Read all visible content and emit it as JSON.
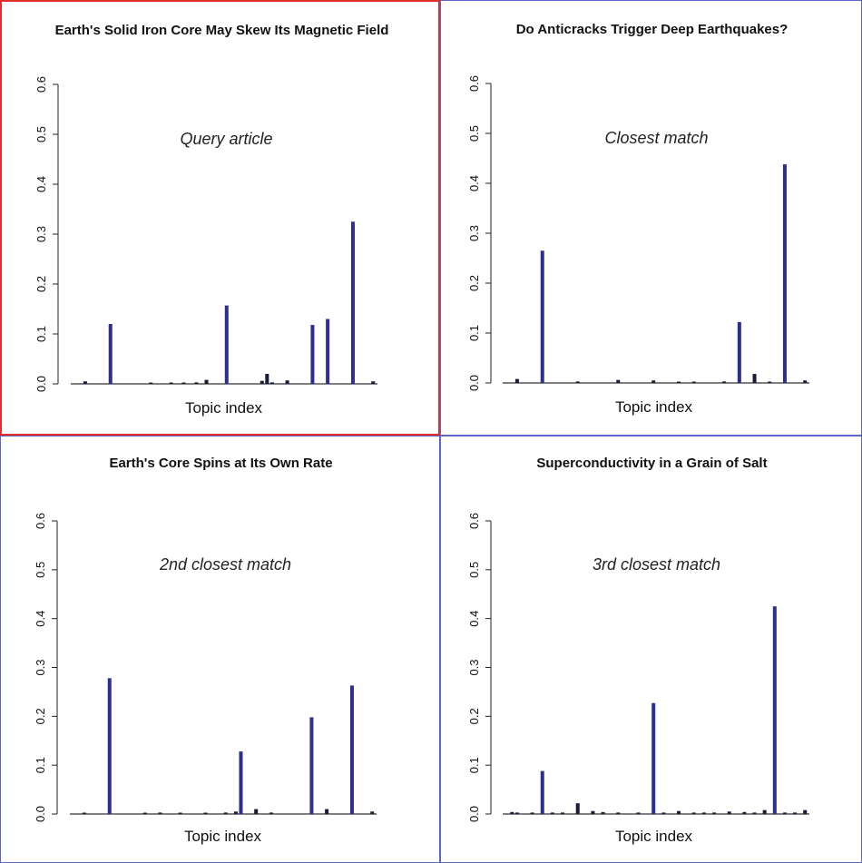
{
  "chart_data": [
    {
      "type": "bar",
      "title": "Earth's Solid Iron Core May Skew Its Magnetic Field",
      "annotation": "Query article",
      "xlabel": "Topic index",
      "ylabel": "",
      "ylim": [
        0,
        0.6
      ],
      "yticks": [
        "0.0",
        "0.1",
        "0.2",
        "0.3",
        "0.4",
        "0.5",
        "0.6"
      ],
      "highlighted": true,
      "border_color": "#e0302a",
      "bar_color": "#2b2f8f",
      "x": [
        6,
        16,
        32,
        40,
        45,
        50,
        54,
        62,
        76,
        78,
        80,
        86,
        96,
        102,
        112,
        120
      ],
      "values": [
        0.005,
        0.12,
        0.002,
        0.002,
        0.002,
        0.003,
        0.008,
        0.157,
        0.006,
        0.02,
        0.003,
        0.007,
        0.118,
        0.13,
        0.325,
        0.005
      ]
    },
    {
      "type": "bar",
      "title": "Do Anticracks Trigger Deep Earthquakes?",
      "annotation": "Closest match",
      "xlabel": "Topic index",
      "ylabel": "",
      "ylim": [
        0,
        0.6
      ],
      "yticks": [
        "0.0",
        "0.1",
        "0.2",
        "0.3",
        "0.4",
        "0.5",
        "0.6"
      ],
      "highlighted": false,
      "border_color": "#5a66c8",
      "bar_color": "#2b2f8f",
      "x": [
        6,
        16,
        30,
        46,
        60,
        70,
        76,
        88,
        94,
        100,
        106,
        112,
        120
      ],
      "values": [
        0.008,
        0.265,
        0.003,
        0.006,
        0.005,
        0.002,
        0.002,
        0.003,
        0.122,
        0.018,
        0.002,
        0.438,
        0.005
      ]
    },
    {
      "type": "bar",
      "title": "Earth's Core Spins at Its Own Rate",
      "annotation": "2nd closest match",
      "xlabel": "Topic index",
      "ylabel": "",
      "ylim": [
        0,
        0.6
      ],
      "yticks": [
        "0.0",
        "0.1",
        "0.2",
        "0.3",
        "0.4",
        "0.5",
        "0.6"
      ],
      "highlighted": false,
      "border_color": "#5a66c8",
      "bar_color": "#2b2f8f",
      "x": [
        6,
        16,
        30,
        36,
        44,
        54,
        62,
        66,
        68,
        74,
        80,
        96,
        102,
        112,
        120
      ],
      "values": [
        0.002,
        0.278,
        0.002,
        0.003,
        0.002,
        0.002,
        0.003,
        0.005,
        0.128,
        0.01,
        0.003,
        0.198,
        0.01,
        0.263,
        0.005
      ]
    },
    {
      "type": "bar",
      "title": "Superconductivity in a Grain of Salt",
      "annotation": "3rd closest match",
      "xlabel": "Topic index",
      "ylabel": "",
      "ylim": [
        0,
        0.6
      ],
      "yticks": [
        "0.0",
        "0.1",
        "0.2",
        "0.3",
        "0.4",
        "0.5",
        "0.6"
      ],
      "highlighted": false,
      "border_color": "#5a66c8",
      "bar_color": "#2b2f8f",
      "x": [
        4,
        6,
        12,
        16,
        20,
        24,
        30,
        36,
        40,
        46,
        54,
        60,
        64,
        70,
        76,
        80,
        84,
        90,
        96,
        100,
        104,
        108,
        112,
        116,
        120
      ],
      "values": [
        0.004,
        0.003,
        0.003,
        0.088,
        0.003,
        0.003,
        0.022,
        0.006,
        0.004,
        0.003,
        0.003,
        0.227,
        0.003,
        0.006,
        0.003,
        0.003,
        0.003,
        0.005,
        0.004,
        0.003,
        0.008,
        0.425,
        0.003,
        0.003,
        0.008
      ]
    }
  ]
}
